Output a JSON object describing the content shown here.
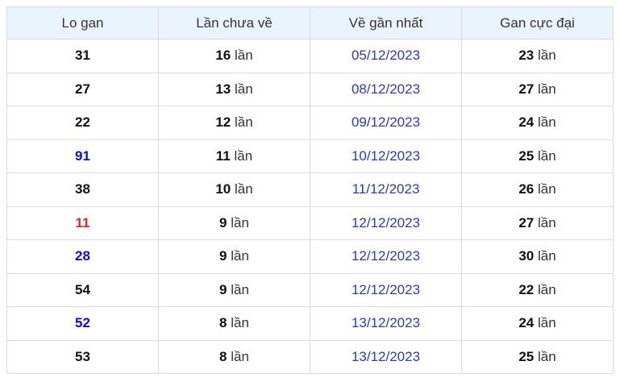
{
  "colors": {
    "header_bg": "#eaf4fd",
    "border": "#dcdcdc",
    "header_text": "#333333",
    "body_text": "#111111",
    "unit_text": "#333333",
    "date_link": "#2a38cc",
    "blue": "#0b0bef",
    "red": "#ee1c25",
    "page_bg": "#ffffff"
  },
  "table": {
    "unit_suffix": "lần",
    "headers": [
      "Lo gan",
      "Lần chưa về",
      "Về gần nhất",
      "Gan cực đại"
    ],
    "rows": [
      {
        "lo_gan": "31",
        "highlight": "none",
        "lan_chua_ve": "16",
        "ve_gan_nhat": "05/12/2023",
        "gan_cuc_dai": "23"
      },
      {
        "lo_gan": "27",
        "highlight": "none",
        "lan_chua_ve": "13",
        "ve_gan_nhat": "08/12/2023",
        "gan_cuc_dai": "27"
      },
      {
        "lo_gan": "22",
        "highlight": "none",
        "lan_chua_ve": "12",
        "ve_gan_nhat": "09/12/2023",
        "gan_cuc_dai": "24"
      },
      {
        "lo_gan": "91",
        "highlight": "blue",
        "lan_chua_ve": "11",
        "ve_gan_nhat": "10/12/2023",
        "gan_cuc_dai": "25"
      },
      {
        "lo_gan": "38",
        "highlight": "none",
        "lan_chua_ve": "10",
        "ve_gan_nhat": "11/12/2023",
        "gan_cuc_dai": "26"
      },
      {
        "lo_gan": "11",
        "highlight": "red",
        "lan_chua_ve": "9",
        "ve_gan_nhat": "12/12/2023",
        "gan_cuc_dai": "27"
      },
      {
        "lo_gan": "28",
        "highlight": "blue",
        "lan_chua_ve": "9",
        "ve_gan_nhat": "12/12/2023",
        "gan_cuc_dai": "30"
      },
      {
        "lo_gan": "54",
        "highlight": "none",
        "lan_chua_ve": "9",
        "ve_gan_nhat": "12/12/2023",
        "gan_cuc_dai": "22"
      },
      {
        "lo_gan": "52",
        "highlight": "blue",
        "lan_chua_ve": "8",
        "ve_gan_nhat": "13/12/2023",
        "gan_cuc_dai": "24"
      },
      {
        "lo_gan": "53",
        "highlight": "none",
        "lan_chua_ve": "8",
        "ve_gan_nhat": "13/12/2023",
        "gan_cuc_dai": "25"
      }
    ]
  }
}
